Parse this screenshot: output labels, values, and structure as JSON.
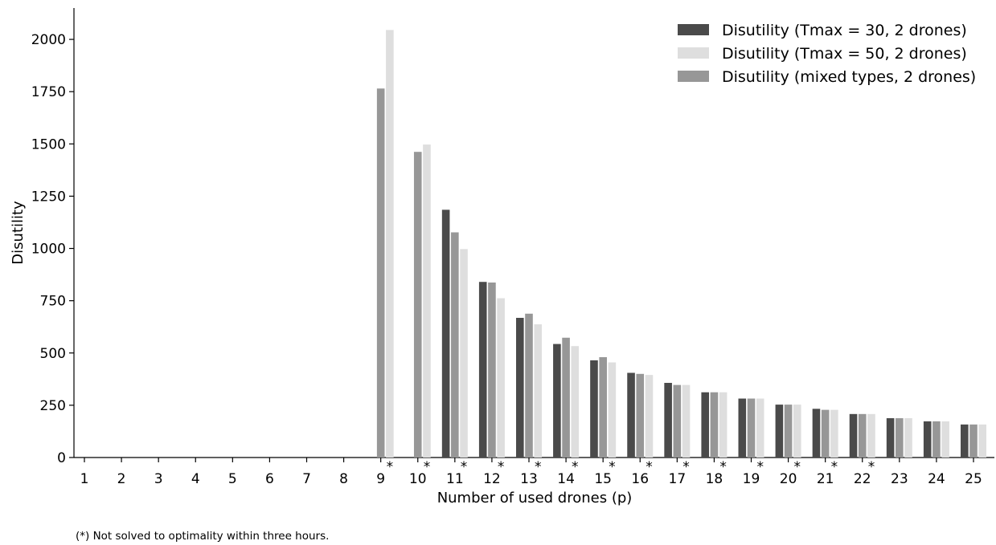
{
  "chart_data": {
    "type": "bar",
    "title": "",
    "xlabel": "Number of used drones (p)",
    "ylabel": "Disutility",
    "categories": [
      "1",
      "2",
      "3",
      "4",
      "5",
      "6",
      "7",
      "8",
      "9",
      "10",
      "11",
      "12",
      "13",
      "14",
      "15",
      "16",
      "17",
      "18",
      "19",
      "20",
      "21",
      "22",
      "23",
      "24",
      "25"
    ],
    "ylim": [
      0,
      2150
    ],
    "yticks": [
      0,
      250,
      500,
      750,
      1000,
      1250,
      1500,
      1750,
      2000
    ],
    "grid": false,
    "legend_position": "top-right",
    "series": [
      {
        "name": "Disutility (Tmax = 30, 2 drones)",
        "color": "#4a4a4a",
        "values": [
          null,
          null,
          null,
          null,
          null,
          null,
          null,
          null,
          null,
          null,
          1185,
          840,
          668,
          543,
          465,
          405,
          357,
          312,
          282,
          253,
          233,
          208,
          188,
          173,
          158
        ]
      },
      {
        "name": "Disutility (Tmax = 50, 2 drones)",
        "color": "#dedede",
        "values": [
          null,
          null,
          null,
          null,
          null,
          null,
          null,
          null,
          2045,
          1497,
          997,
          762,
          637,
          533,
          455,
          395,
          347,
          312,
          282,
          253,
          228,
          208,
          188,
          173,
          158
        ]
      },
      {
        "name": "Disutility (mixed types, 2 drones)",
        "color": "#979797",
        "values": [
          null,
          null,
          null,
          null,
          null,
          null,
          null,
          null,
          1765,
          1462,
          1077,
          837,
          688,
          573,
          480,
          400,
          347,
          312,
          282,
          253,
          228,
          208,
          188,
          173,
          158
        ]
      }
    ],
    "annotations": {
      "star_marker": "*",
      "starred_categories": [
        "9",
        "10",
        "11",
        "12",
        "13",
        "14",
        "15",
        "16",
        "17",
        "18",
        "19",
        "20",
        "21",
        "22"
      ]
    },
    "footnote": "(*) Not solved to optimality within three hours."
  }
}
